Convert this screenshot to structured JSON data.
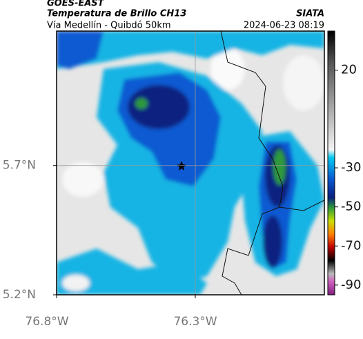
{
  "header": {
    "title": "GOES-EAST",
    "subtitle": "Temperatura de Brillo CH13",
    "region": "Vía Medellín - Quibdó 50km",
    "source": "SIATA",
    "timestamp": "2024-06-23 08:19"
  },
  "map": {
    "xlim": [
      -76.8,
      -75.835
    ],
    "ylim": [
      5.2,
      6.22
    ],
    "xticks": [
      {
        "value": -76.8,
        "label": "76.8°W"
      },
      {
        "value": -76.3,
        "label": "76.3°W"
      }
    ],
    "yticks": [
      {
        "value": 5.2,
        "label": "5.2°N"
      },
      {
        "value": 5.7,
        "label": "5.7°N"
      }
    ],
    "grid": true
  },
  "colorbar": {
    "lim": [
      40,
      -95
    ],
    "ticks": [
      20,
      -30,
      -50,
      -70,
      -90
    ]
  }
}
